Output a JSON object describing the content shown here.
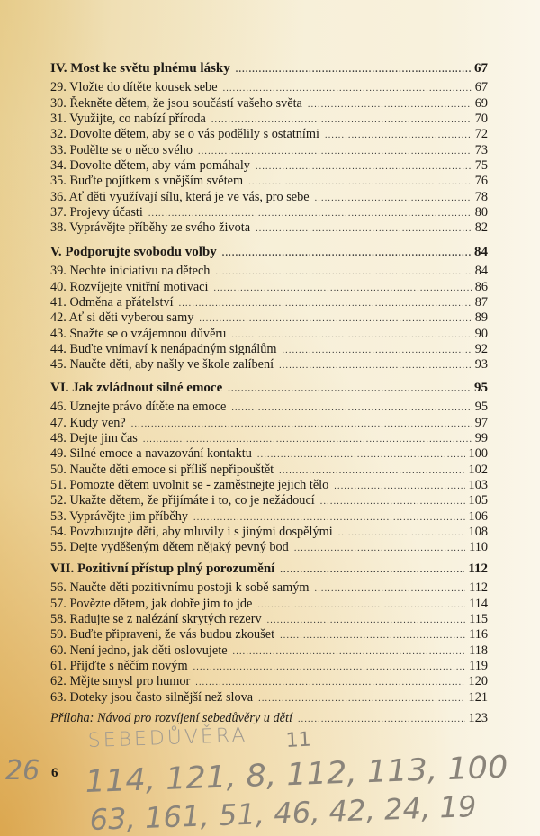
{
  "sections": [
    {
      "title": "IV. Most ke světu plnému lásky",
      "page": "67",
      "items": [
        {
          "t": "29. Vložte do dítěte kousek sebe",
          "p": "67"
        },
        {
          "t": "30. Řekněte dětem, že jsou součástí vašeho světa",
          "p": "69"
        },
        {
          "t": "31. Využijte, co nabízí příroda",
          "p": "70"
        },
        {
          "t": "32. Dovolte dětem, aby se o vás podělily s ostatními",
          "p": "72"
        },
        {
          "t": "33. Podělte se o něco svého",
          "p": "73"
        },
        {
          "t": "34. Dovolte dětem, aby vám pomáhaly",
          "p": "75"
        },
        {
          "t": "35. Buďte pojítkem s vnějším světem",
          "p": "76"
        },
        {
          "t": "36. Ať děti využívají sílu, která je ve vás, pro sebe",
          "p": "78"
        },
        {
          "t": "37. Projevy účasti",
          "p": "80"
        },
        {
          "t": "38. Vyprávějte příběhy ze svého života",
          "p": "82"
        }
      ]
    },
    {
      "title": "V. Podporujte svobodu volby",
      "page": "84",
      "items": [
        {
          "t": "39. Nechte iniciativu na dětech",
          "p": "84"
        },
        {
          "t": "40. Rozvíjejte vnitřní motivaci",
          "p": "86"
        },
        {
          "t": "41. Odměna a přátelství",
          "p": "87"
        },
        {
          "t": "42. Ať si děti vyberou samy",
          "p": "89"
        },
        {
          "t": "43. Snažte se o vzájemnou důvěru",
          "p": "90"
        },
        {
          "t": "44. Buďte vnímaví k nenápadným signálům",
          "p": "92"
        },
        {
          "t": "45. Naučte děti, aby našly ve škole zalíbení",
          "p": "93"
        }
      ]
    },
    {
      "title": "VI. Jak zvládnout silné emoce",
      "page": "95",
      "items": [
        {
          "t": "46. Uznejte právo dítěte na emoce",
          "p": "95"
        },
        {
          "t": "47. Kudy ven?",
          "p": "97"
        },
        {
          "t": "48. Dejte jim čas",
          "p": "99"
        },
        {
          "t": "49. Silné emoce a navazování kontaktu",
          "p": "100"
        },
        {
          "t": "50. Naučte děti emoce si příliš nepřipouštět",
          "p": "102"
        },
        {
          "t": "51. Pomozte dětem uvolnit se - zaměstnejte jejich tělo",
          "p": "103"
        },
        {
          "t": "52. Ukažte dětem, že přijímáte i to, co je nežádoucí",
          "p": "105"
        },
        {
          "t": "53. Vyprávějte jim příběhy",
          "p": "106"
        },
        {
          "t": "54. Povzbuzujte děti, aby mluvily i s jinými dospělými",
          "p": "108"
        },
        {
          "t": "55. Dejte vyděšeným dětem nějaký pevný bod",
          "p": "110"
        }
      ]
    },
    {
      "title": "VII. Pozitivní přístup plný porozumění",
      "page": "112",
      "items": [
        {
          "t": "56. Naučte děti pozitivnímu postoji k sobě samým",
          "p": "112"
        },
        {
          "t": "57. Povězte dětem, jak dobře jim to jde",
          "p": "114"
        },
        {
          "t": "58. Radujte se z nalézání skrytých rezerv",
          "p": "115"
        },
        {
          "t": "59. Buďte připraveni, že vás budou zkoušet",
          "p": "116"
        },
        {
          "t": "60. Není jedno, jak děti oslovujete",
          "p": "118"
        },
        {
          "t": "61. Přijďte s něčím novým",
          "p": "119"
        },
        {
          "t": "62. Mějte smysl pro humor",
          "p": "120"
        },
        {
          "t": "63. Doteky jsou často silnější než slova",
          "p": "121"
        }
      ]
    }
  ],
  "appendix": {
    "t": "Příloha: Návod pro rozvíjení sebedůvěry u dětí",
    "p": "123"
  },
  "page_number": "6",
  "handwriting": {
    "line1": "SEBEDŮVĚRA",
    "line1b": "11",
    "margin": "26",
    "line2": "114, 121, 8, 112, 113, 100",
    "line3": "63, 161, 51, 46, 42, 24, 19"
  }
}
